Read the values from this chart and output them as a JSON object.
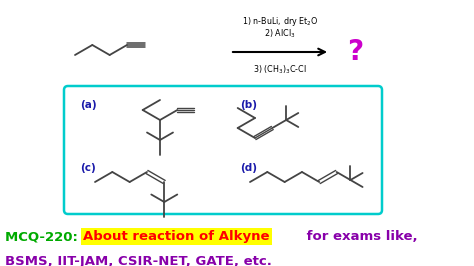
{
  "bg_color": "#ffffff",
  "green_color": "#00aa00",
  "red_color": "#ff0000",
  "yellow_color": "#ffff00",
  "purple_color": "#8800aa",
  "blue_color": "#1a1aaa",
  "bond_color": "#444444",
  "box_color": "#00cccc",
  "qmark_color": "#cc00cc",
  "label_a": "(a)",
  "label_b": "(b)",
  "label_c": "(c)",
  "label_d": "(d)"
}
